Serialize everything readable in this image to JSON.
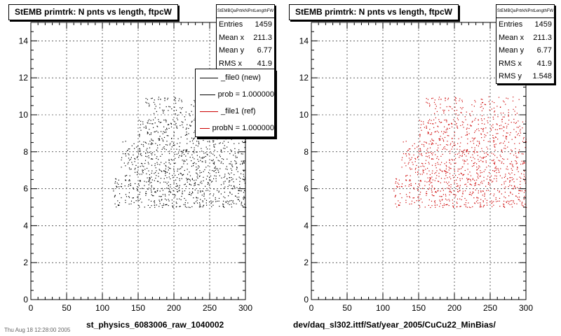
{
  "footer_text": "Thu Aug 18 12:28:00 2005",
  "legend": {
    "items": [
      {
        "label": "_file0 (new)",
        "color": "#000000"
      },
      {
        "label": "prob = 1.000000",
        "color": "#000000"
      },
      {
        "label": "_file1 (ref)",
        "color": "#cc0000"
      },
      {
        "label": "probN = 1.000000",
        "color": "#cc0000"
      }
    ]
  },
  "pads": [
    {
      "title": "StEMB primtrk: N pnts vs length, ftpcW",
      "xtitle": "st_physics_6083006_raw_1040002",
      "stats": {
        "header": "StEMBQaPrtrkNPntLengthFW",
        "rows": [
          {
            "label": "Entries",
            "value": "1459"
          },
          {
            "label": "Mean x",
            "value": "211.3"
          },
          {
            "label": "Mean y",
            "value": "6.77"
          },
          {
            "label": "RMS x",
            "value": "41.9"
          }
        ]
      }
    },
    {
      "title": "StEMB primtrk: N pnts vs length, ftpcW",
      "xtitle": "dev/daq_sl302.ittf/Sat/year_2005/CuCu22_MinBias/",
      "stats": {
        "header": "StEMBQaPrtrkNPntLengthFW",
        "rows": [
          {
            "label": "Entries",
            "value": "1459"
          },
          {
            "label": "Mean x",
            "value": "211.3"
          },
          {
            "label": "Mean y",
            "value": "6.77"
          },
          {
            "label": "RMS x",
            "value": "41.9"
          },
          {
            "label": "RMS y",
            "value": "1.548"
          }
        ]
      }
    }
  ],
  "chart_data": [
    {
      "type": "scatter",
      "title": "StEMB primtrk: N pnts vs length, ftpcW",
      "xlabel": "st_physics_6083006_raw_1040002",
      "ylabel": "",
      "xlim": [
        0,
        300
      ],
      "ylim": [
        0,
        15
      ],
      "xticks": [
        0,
        50,
        100,
        150,
        200,
        250,
        300
      ],
      "yticks": [
        0,
        2,
        4,
        6,
        8,
        10,
        12,
        14
      ],
      "grid": true,
      "color": "#000000",
      "entries": 1459,
      "mean_x": 211.3,
      "mean_y": 6.77,
      "rms_x": 41.9,
      "density": [
        {
          "x": [
            115,
            300
          ],
          "y": [
            5,
            7
          ],
          "n": 520
        },
        {
          "x": [
            125,
            300
          ],
          "y": [
            7,
            8.6
          ],
          "n": 360
        },
        {
          "x": [
            150,
            300
          ],
          "y": [
            8.6,
            9.8
          ],
          "n": 220
        },
        {
          "x": [
            160,
            290
          ],
          "y": [
            9.8,
            11
          ],
          "n": 120
        }
      ]
    },
    {
      "type": "scatter",
      "title": "StEMB primtrk: N pnts vs length, ftpcW",
      "xlabel": "dev/daq_sl302.ittf/Sat/year_2005/CuCu22_MinBias/",
      "ylabel": "",
      "xlim": [
        0,
        300
      ],
      "ylim": [
        0,
        15
      ],
      "xticks": [
        0,
        50,
        100,
        150,
        200,
        250,
        300
      ],
      "yticks": [
        0,
        2,
        4,
        6,
        8,
        10,
        12,
        14
      ],
      "grid": true,
      "color": "#cc0000",
      "entries": 1459,
      "mean_x": 211.3,
      "mean_y": 6.77,
      "rms_x": 41.9,
      "rms_y": 1.548,
      "density": [
        {
          "x": [
            115,
            300
          ],
          "y": [
            5,
            7
          ],
          "n": 520
        },
        {
          "x": [
            125,
            300
          ],
          "y": [
            7,
            8.6
          ],
          "n": 360
        },
        {
          "x": [
            150,
            300
          ],
          "y": [
            8.6,
            9.8
          ],
          "n": 220
        },
        {
          "x": [
            160,
            290
          ],
          "y": [
            9.8,
            11
          ],
          "n": 120
        }
      ]
    }
  ]
}
